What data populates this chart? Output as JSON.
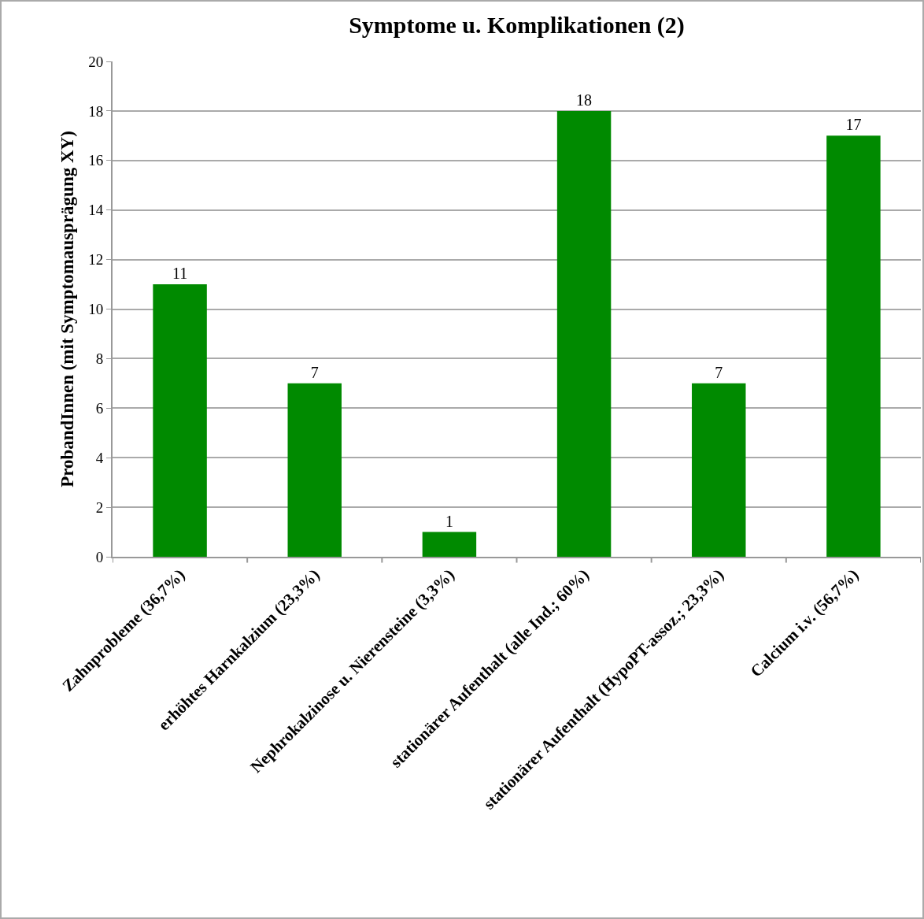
{
  "chart_data": {
    "type": "bar",
    "title": "Symptome u. Komplikationen (2)",
    "ylabel": "ProbandInnen (mit Symptomausprägung XY)",
    "categories": [
      "Zahnprobleme (36,7%)",
      "erhöhtes Harnkalzium (23,3%)",
      "Nephrokalzinose u. Nierensteine (3,3%)",
      "stationärer Aufenthalt (alle Ind.; 60%)",
      "stationärer Aufenthalt (HypoPT-assoz.; 23,3%)",
      "Calcium i.v. (56,7%)"
    ],
    "values": [
      11,
      7,
      1,
      18,
      7,
      17
    ],
    "color": "#008a00",
    "ylim": [
      0,
      20
    ],
    "yticks": [
      0,
      2,
      4,
      6,
      8,
      10,
      12,
      14,
      16,
      18,
      20
    ],
    "grid": "y",
    "data_labels": true,
    "legend": false
  }
}
